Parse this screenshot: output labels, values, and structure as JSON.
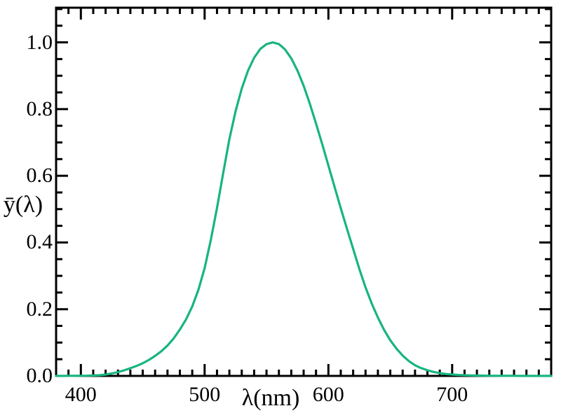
{
  "figure": {
    "background": "#ffffff",
    "axis_color": "#000000",
    "text_color": "#000000"
  },
  "chart_data": {
    "type": "line",
    "title": "",
    "xlabel": "λ(nm)",
    "ylabel": "ȳ(λ)",
    "xlim": [
      380,
      780
    ],
    "ylim": [
      0,
      1.104
    ],
    "grid": false,
    "legend": "none",
    "tick_style": "inward, all four sides, minor and major",
    "x_major_ticks": [
      {
        "value": 400,
        "label": "400"
      },
      {
        "value": 500,
        "label": "500"
      },
      {
        "value": 600,
        "label": "600"
      },
      {
        "value": 700,
        "label": "700"
      }
    ],
    "y_major_ticks": [
      {
        "value": 0.0,
        "label": "0.0"
      },
      {
        "value": 0.2,
        "label": "0.2"
      },
      {
        "value": 0.4,
        "label": "0.4"
      },
      {
        "value": 0.6,
        "label": "0.6"
      },
      {
        "value": 0.8,
        "label": "0.8"
      },
      {
        "value": 1.0,
        "label": "1.0"
      }
    ],
    "x_minor_step": 10,
    "y_minor_step": 0.05,
    "series": [
      {
        "name": "ȳ(λ)",
        "color": "#17b57d",
        "x": [
          380,
          385,
          390,
          395,
          400,
          405,
          410,
          415,
          420,
          425,
          430,
          435,
          440,
          445,
          450,
          455,
          460,
          465,
          470,
          475,
          480,
          485,
          490,
          495,
          500,
          505,
          510,
          515,
          520,
          525,
          530,
          535,
          540,
          545,
          550,
          555,
          560,
          565,
          570,
          575,
          580,
          585,
          590,
          595,
          600,
          605,
          610,
          615,
          620,
          625,
          630,
          635,
          640,
          645,
          650,
          655,
          660,
          665,
          670,
          675,
          680,
          685,
          690,
          695,
          700,
          705,
          710,
          715,
          720,
          725,
          730,
          735,
          740,
          745,
          750,
          755,
          760,
          765,
          770,
          775,
          780
        ],
        "values": [
          3.9e-05,
          6.4e-05,
          0.00012,
          0.000217,
          0.000396,
          0.00064,
          0.00121,
          0.00218,
          0.004,
          0.0073,
          0.0116,
          0.01684,
          0.023,
          0.0298,
          0.038,
          0.048,
          0.06,
          0.0739,
          0.09098,
          0.1126,
          0.13902,
          0.1693,
          0.20802,
          0.2586,
          0.323,
          0.4073,
          0.503,
          0.6082,
          0.71,
          0.7932,
          0.862,
          0.91485,
          0.954,
          0.9803,
          0.99495,
          1.0,
          0.995,
          0.9786,
          0.952,
          0.9154,
          0.87,
          0.8163,
          0.757,
          0.6949,
          0.631,
          0.5668,
          0.503,
          0.4412,
          0.381,
          0.321,
          0.265,
          0.217,
          0.175,
          0.1382,
          0.107,
          0.0816,
          0.061,
          0.04458,
          0.032,
          0.0232,
          0.017,
          0.01192,
          0.00821,
          0.005723,
          0.004102,
          0.002929,
          0.002091,
          0.001484,
          0.001047,
          0.00074,
          0.00052,
          0.000361,
          0.000249,
          0.000172,
          0.00012,
          8.5e-05,
          6e-05,
          4.17e-05,
          3e-05,
          2.09e-05,
          1.48e-05
        ]
      }
    ],
    "peak": {
      "wavelength_nm": 555,
      "value": 1.0
    }
  }
}
